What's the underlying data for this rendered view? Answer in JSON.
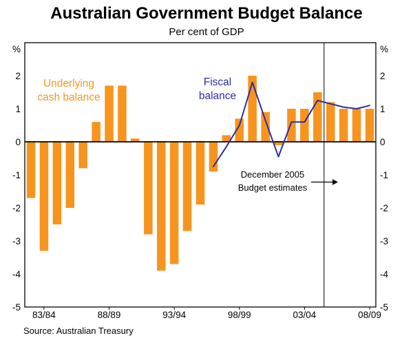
{
  "page": {
    "title": "Australian Government Budget Balance",
    "subtitle": "Per cent of GDP",
    "source": "Source: Australian Treasury"
  },
  "annotation": {
    "line1": "December 2005",
    "line2": "Budget estimates"
  },
  "series_labels": {
    "bar_line1": "Underlying",
    "bar_line2": "cash balance",
    "line_line1": "Fiscal",
    "line_line2": "balance"
  },
  "colors": {
    "bar": "#F7941E",
    "line": "#2B2BA3",
    "axis": "#000000"
  },
  "chart_data": {
    "type": "bar+line",
    "title": "Australian Government Budget Balance",
    "subtitle": "Per cent of GDP",
    "ylabel_unit": "%",
    "ylim": [
      -5,
      3
    ],
    "y_ticks": [
      2,
      1,
      0,
      -1,
      -2,
      -3,
      -4,
      -5
    ],
    "x_tick_labels": [
      "83/84",
      "88/89",
      "93/94",
      "98/99",
      "03/04",
      "08/09"
    ],
    "grid": false,
    "legend_position": "inline-labels",
    "categories": [
      "82/83",
      "83/84",
      "84/85",
      "85/86",
      "86/87",
      "87/88",
      "88/89",
      "89/90",
      "90/91",
      "91/92",
      "92/93",
      "93/94",
      "94/95",
      "95/96",
      "96/97",
      "97/98",
      "98/99",
      "99/00",
      "00/01",
      "01/02",
      "02/03",
      "03/04",
      "04/05",
      "05/06",
      "06/07",
      "07/08",
      "08/09"
    ],
    "series": [
      {
        "name": "Underlying cash balance",
        "kind": "bar",
        "color": "#F7941E",
        "values": [
          -1.7,
          -3.3,
          -2.5,
          -2.0,
          -0.8,
          0.6,
          1.7,
          1.7,
          0.1,
          -2.8,
          -3.9,
          -3.7,
          -2.7,
          -1.9,
          -0.9,
          0.2,
          0.7,
          2.0,
          0.9,
          -0.1,
          1.0,
          1.0,
          1.5,
          1.2,
          1.0,
          1.0,
          1.0
        ]
      },
      {
        "name": "Fiscal balance",
        "kind": "line",
        "color": "#2B2BA3",
        "values": [
          null,
          null,
          null,
          null,
          null,
          null,
          null,
          null,
          null,
          null,
          null,
          null,
          null,
          null,
          -0.75,
          -0.15,
          0.5,
          1.8,
          0.65,
          -0.45,
          0.6,
          0.6,
          1.25,
          1.15,
          1.05,
          1.0,
          1.1
        ]
      }
    ],
    "estimates_divider_between": [
      "04/05",
      "05/06"
    ],
    "annotation_text": "December 2005 Budget estimates",
    "source": "Source: Australian Treasury"
  }
}
